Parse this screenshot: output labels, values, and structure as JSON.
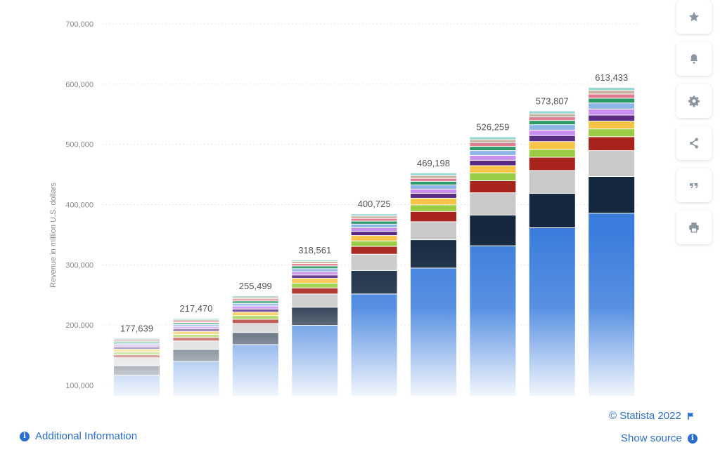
{
  "chart_data": {
    "type": "bar",
    "stacked": true,
    "ylabel": "Revenue in million U.S. dollars",
    "ylim": [
      100000,
      700000
    ],
    "yticks": [
      "100,000",
      "200,000",
      "300,000",
      "400,000",
      "500,000",
      "600,000",
      "700,000"
    ],
    "xlabel": "",
    "grid": true,
    "totals": [
      177639,
      217470,
      255499,
      318561,
      400725,
      469198,
      526259,
      573807,
      613433
    ],
    "total_labels": [
      "177,639",
      "217,470",
      "255,499",
      "318,561",
      "400,725",
      "469,198",
      "526,259",
      "573,807",
      "613,433"
    ],
    "series_colors": [
      "#3b7ddd",
      "#14273f",
      "#c9c9c9",
      "#a8231c",
      "#9acd45",
      "#f7c448",
      "#5b2c83",
      "#c88ff0",
      "#8fb5e8",
      "#2e9a6a",
      "#e27d91",
      "#c9b3a0",
      "#9bd7d3"
    ],
    "segments": [
      [
        116000,
        16000,
        13000,
        5000,
        5000,
        4500,
        3500,
        3500,
        3000,
        3000,
        2500,
        1500,
        1000
      ],
      [
        139000,
        20000,
        14000,
        6000,
        5000,
        5000,
        4000,
        4000,
        3500,
        3000,
        3000,
        2000,
        2000
      ],
      [
        167000,
        20000,
        15000,
        7000,
        6000,
        6000,
        5000,
        5000,
        4500,
        4000,
        3500,
        3000,
        2000
      ],
      [
        199000,
        30000,
        22000,
        10000,
        8000,
        8000,
        5500,
        5500,
        5000,
        4500,
        4000,
        3500,
        2500
      ],
      [
        251000,
        39000,
        27000,
        13000,
        9000,
        9000,
        7000,
        6000,
        6000,
        5000,
        4500,
        4000,
        3500
      ],
      [
        294000,
        47000,
        30000,
        17000,
        11000,
        11000,
        8000,
        7000,
        7000,
        6000,
        5000,
        4500,
        4500
      ],
      [
        331000,
        51000,
        37000,
        20000,
        13000,
        12000,
        9000,
        8000,
        8000,
        7000,
        6000,
        5000,
        5000
      ],
      [
        361000,
        57000,
        38000,
        22000,
        13000,
        13000,
        10000,
        9000,
        9000,
        7000,
        6000,
        5000,
        5000
      ],
      [
        385000,
        61000,
        43000,
        23000,
        13000,
        13000,
        10000,
        10000,
        10000,
        8000,
        7000,
        6000,
        5000
      ]
    ]
  },
  "toolbar": {
    "buttons": [
      {
        "icon": "star-icon"
      },
      {
        "icon": "bell-icon"
      },
      {
        "icon": "gear-icon"
      },
      {
        "icon": "share-icon"
      },
      {
        "icon": "quote-icon"
      },
      {
        "icon": "print-icon"
      }
    ]
  },
  "footer": {
    "copyright": "© Statista 2022",
    "additional_info": "Additional Information",
    "show_source": "Show source"
  },
  "colors": {
    "accent": "#2b6fce",
    "icon_gray": "#8c95a3"
  }
}
